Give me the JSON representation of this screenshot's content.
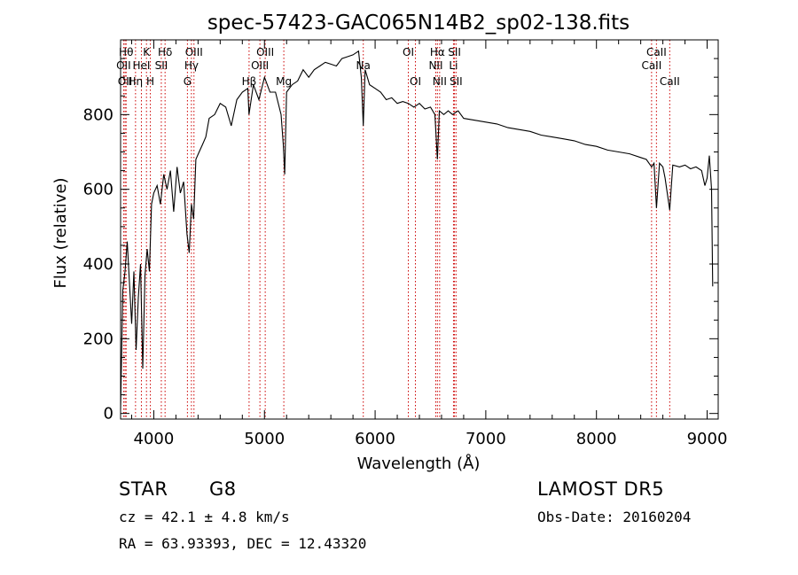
{
  "chart_data": {
    "type": "line",
    "title": "spec-57423-GAC065N14B2_sp02-138.fits",
    "xlabel": "Wavelength (Å)",
    "ylabel": "Flux (relative)",
    "xlim": [
      3700,
      9100
    ],
    "ylim": [
      -15,
      1000
    ],
    "x_ticks": [
      4000,
      5000,
      6000,
      7000,
      8000,
      9000
    ],
    "y_ticks": [
      0,
      200,
      400,
      600,
      800
    ],
    "grid": false,
    "line_color": "#000000",
    "marker_color": "#cc0000",
    "series": [
      {
        "x": [
          3700,
          3720,
          3740,
          3760,
          3780,
          3800,
          3820,
          3840,
          3860,
          3880,
          3900,
          3920,
          3940,
          3960,
          3980,
          4000,
          4030,
          4060,
          4090,
          4120,
          4150,
          4180,
          4210,
          4240,
          4270,
          4300,
          4320,
          4340,
          4360,
          4380,
          4410,
          4440,
          4470,
          4500,
          4550,
          4600,
          4650,
          4700,
          4750,
          4800,
          4850,
          4860,
          4900,
          4950,
          5000,
          5050,
          5100,
          5150,
          5170,
          5183,
          5200,
          5250,
          5300,
          5350,
          5400,
          5450,
          5500,
          5550,
          5600,
          5650,
          5700,
          5750,
          5800,
          5850,
          5875,
          5893,
          5910,
          5950,
          6000,
          6050,
          6100,
          6150,
          6200,
          6250,
          6300,
          6350,
          6400,
          6450,
          6500,
          6540,
          6563,
          6580,
          6620,
          6660,
          6700,
          6750,
          6800,
          6900,
          7000,
          7100,
          7200,
          7300,
          7400,
          7500,
          7600,
          7700,
          7800,
          7900,
          8000,
          8100,
          8200,
          8300,
          8400,
          8450,
          8498,
          8520,
          8542,
          8570,
          8600,
          8620,
          8662,
          8690,
          8750,
          8800,
          8850,
          8900,
          8950,
          8980,
          9000,
          9020,
          9040,
          9050
        ],
        "values": [
          10,
          330,
          380,
          460,
          350,
          240,
          380,
          170,
          310,
          400,
          120,
          370,
          440,
          380,
          560,
          590,
          610,
          560,
          640,
          600,
          650,
          540,
          660,
          590,
          620,
          480,
          430,
          560,
          520,
          680,
          700,
          720,
          740,
          790,
          800,
          830,
          820,
          770,
          840,
          860,
          870,
          800,
          880,
          840,
          900,
          860,
          860,
          800,
          720,
          640,
          860,
          880,
          890,
          920,
          900,
          920,
          930,
          940,
          935,
          930,
          950,
          955,
          960,
          970,
          900,
          770,
          920,
          880,
          870,
          860,
          840,
          845,
          830,
          835,
          830,
          820,
          830,
          815,
          820,
          800,
          680,
          810,
          800,
          810,
          800,
          810,
          790,
          785,
          780,
          775,
          765,
          760,
          755,
          745,
          740,
          735,
          730,
          720,
          715,
          705,
          700,
          695,
          685,
          680,
          660,
          670,
          550,
          670,
          660,
          630,
          545,
          665,
          660,
          665,
          655,
          660,
          650,
          610,
          630,
          690,
          600,
          340
        ]
      }
    ],
    "lines": [
      {
        "wavelength": 3750,
        "label": "Hθ",
        "row": 1
      },
      {
        "wavelength": 3727,
        "label": "OII",
        "row": 2
      },
      {
        "wavelength": 3740,
        "label": "OII",
        "row": 3
      },
      {
        "wavelength": 3835,
        "label": "Hη",
        "row": 3
      },
      {
        "wavelength": 3888,
        "label": "HeI",
        "row": 2
      },
      {
        "wavelength": 3934,
        "label": "K",
        "row": 1
      },
      {
        "wavelength": 3969,
        "label": "H",
        "row": 3
      },
      {
        "wavelength": 4068,
        "label": "SII",
        "row": 2
      },
      {
        "wavelength": 4102,
        "label": "Hδ",
        "row": 1
      },
      {
        "wavelength": 4304,
        "label": "G",
        "row": 3
      },
      {
        "wavelength": 4340,
        "label": "Hγ",
        "row": 2
      },
      {
        "wavelength": 4363,
        "label": "OIII",
        "row": 1
      },
      {
        "wavelength": 4861,
        "label": "Hβ",
        "row": 3
      },
      {
        "wavelength": 4959,
        "label": "OIII",
        "row": 2
      },
      {
        "wavelength": 5007,
        "label": "OIII",
        "row": 1
      },
      {
        "wavelength": 5175,
        "label": "Mg",
        "row": 3
      },
      {
        "wavelength": 5893,
        "label": "Na",
        "row": 2
      },
      {
        "wavelength": 6300,
        "label": "OI",
        "row": 1
      },
      {
        "wavelength": 6364,
        "label": "OI",
        "row": 3
      },
      {
        "wavelength": 6548,
        "label": "NII",
        "row": 2
      },
      {
        "wavelength": 6563,
        "label": "Hα",
        "row": 1
      },
      {
        "wavelength": 6583,
        "label": "NII",
        "row": 3
      },
      {
        "wavelength": 6708,
        "label": "Li",
        "row": 2
      },
      {
        "wavelength": 6717,
        "label": "SII",
        "row": 1
      },
      {
        "wavelength": 6731,
        "label": "SII",
        "row": 3
      },
      {
        "wavelength": 8498,
        "label": "CaII",
        "row": 2
      },
      {
        "wavelength": 8542,
        "label": "CaII",
        "row": 1
      },
      {
        "wavelength": 8662,
        "label": "CaII",
        "row": 3
      }
    ]
  },
  "info": {
    "object_class": "STAR",
    "subclass": "G8",
    "survey": "LAMOST DR5",
    "cz": "cz = 42.1 ± 4.8 km/s",
    "obs_date": "Obs-Date: 20160204",
    "coords": "RA =  63.93393, DEC =  12.43320"
  }
}
